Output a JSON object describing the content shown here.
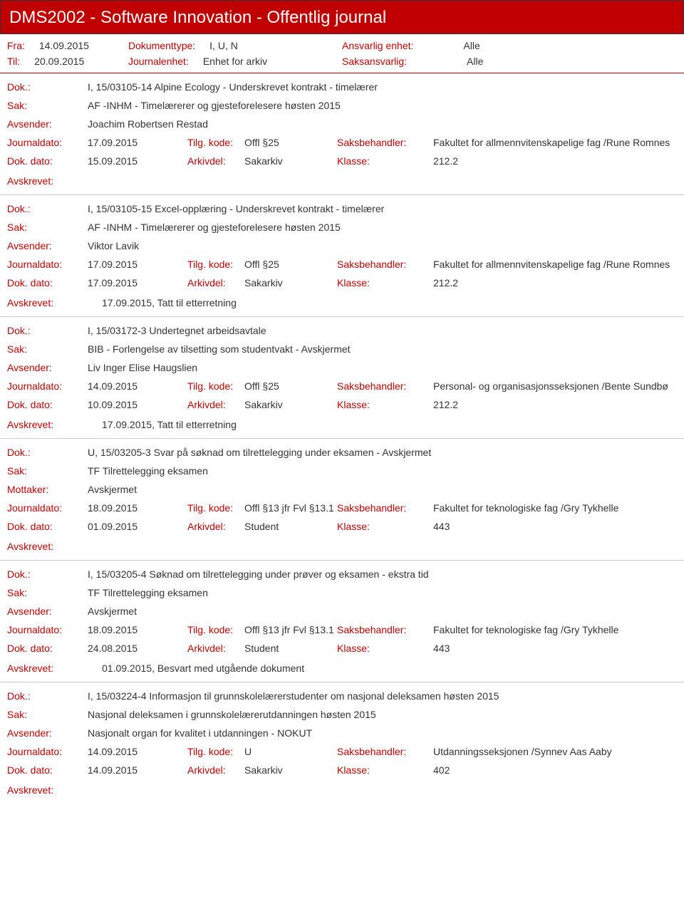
{
  "header": {
    "title": "DMS2002 - Software Innovation - Offentlig journal"
  },
  "filter": {
    "fra_label": "Fra:",
    "fra_value": "14.09.2015",
    "til_label": "Til:",
    "til_value": "20.09.2015",
    "doktype_label": "Dokumenttype:",
    "doktype_value": "I, U, N",
    "journalenhet_label": "Journalenhet:",
    "journalenhet_value": "Enhet for arkiv",
    "ansvarlig_enhet_label": "Ansvarlig enhet:",
    "ansvarlig_enhet_value": "Alle",
    "saksansvarlig_label": "Saksansvarlig:",
    "saksansvarlig_value": "Alle"
  },
  "labels": {
    "dok": "Dok.:",
    "sak": "Sak:",
    "avsender": "Avsender:",
    "mottaker": "Mottaker:",
    "journaldato": "Journaldato:",
    "tilgkode": "Tilg. kode:",
    "saksbehandler": "Saksbehandler:",
    "dokdato": "Dok. dato:",
    "arkivdel": "Arkivdel:",
    "klasse": "Klasse:",
    "avskrevet": "Avskrevet:"
  },
  "records": [
    {
      "dok": "I, 15/03105-14 Alpine Ecology - Underskrevet kontrakt - timelærer",
      "sak": "AF -INHM - Timelærerer og gjesteforelesere høsten 2015",
      "party_label": "avsender",
      "party": "Joachim Robertsen Restad",
      "journaldato": "17.09.2015",
      "tilgkode": "Offl §25",
      "saksbehandler": "Fakultet for allmennvitenskapelige fag /Rune Romnes",
      "dokdato": "15.09.2015",
      "arkivdel": "Sakarkiv",
      "klasse": "212.2",
      "avskrevet": ""
    },
    {
      "dok": "I, 15/03105-15 Excel-opplæring - Underskrevet kontrakt - timelærer",
      "sak": "AF -INHM - Timelærerer og gjesteforelesere høsten 2015",
      "party_label": "avsender",
      "party": "Viktor Lavik",
      "journaldato": "17.09.2015",
      "tilgkode": "Offl §25",
      "saksbehandler": "Fakultet for allmennvitenskapelige fag /Rune Romnes",
      "dokdato": "17.09.2015",
      "arkivdel": "Sakarkiv",
      "klasse": "212.2",
      "avskrevet": "17.09.2015, Tatt til etterretning"
    },
    {
      "dok": "I, 15/03172-3 Undertegnet arbeidsavtale",
      "sak": "BIB - Forlengelse av tilsetting som studentvakt - Avskjermet",
      "party_label": "avsender",
      "party": "Liv Inger Elise Haugslien",
      "journaldato": "14.09.2015",
      "tilgkode": "Offl §25",
      "saksbehandler": "Personal- og organisasjonsseksjonen /Bente Sundbø",
      "dokdato": "10.09.2015",
      "arkivdel": "Sakarkiv",
      "klasse": "212.2",
      "avskrevet": "17.09.2015, Tatt til etterretning"
    },
    {
      "dok": "U, 15/03205-3 Svar på søknad om tilrettelegging under eksamen - Avskjermet",
      "sak": "TF Tilrettelegging eksamen",
      "party_label": "mottaker",
      "party": "Avskjermet",
      "journaldato": "18.09.2015",
      "tilgkode": "Offl §13 jfr Fvl §13.1",
      "saksbehandler": "Fakultet for teknologiske fag /Gry Tykhelle",
      "dokdato": "01.09.2015",
      "arkivdel": "Student",
      "klasse": "443",
      "avskrevet": ""
    },
    {
      "dok": "I, 15/03205-4 Søknad om tilrettelegging under prøver og eksamen - ekstra tid",
      "sak": "TF Tilrettelegging eksamen",
      "party_label": "avsender",
      "party": "Avskjermet",
      "journaldato": "18.09.2015",
      "tilgkode": "Offl §13 jfr Fvl §13.1",
      "saksbehandler": "Fakultet for teknologiske fag /Gry Tykhelle",
      "dokdato": "24.08.2015",
      "arkivdel": "Student",
      "klasse": "443",
      "avskrevet": "01.09.2015, Besvart med utgående dokument"
    },
    {
      "dok": "I, 15/03224-4 Informasjon til grunnskolelærerstudenter om nasjonal deleksamen høsten 2015",
      "sak": "Nasjonal deleksamen i grunnskolelærerutdanningen høsten 2015",
      "party_label": "avsender",
      "party": "Nasjonalt organ for kvalitet i utdanningen - NOKUT",
      "journaldato": "14.09.2015",
      "tilgkode": "U",
      "saksbehandler": "Utdanningsseksjonen /Synnev Aas Aaby",
      "dokdato": "14.09.2015",
      "arkivdel": "Sakarkiv",
      "klasse": "402",
      "avskrevet": ""
    }
  ]
}
